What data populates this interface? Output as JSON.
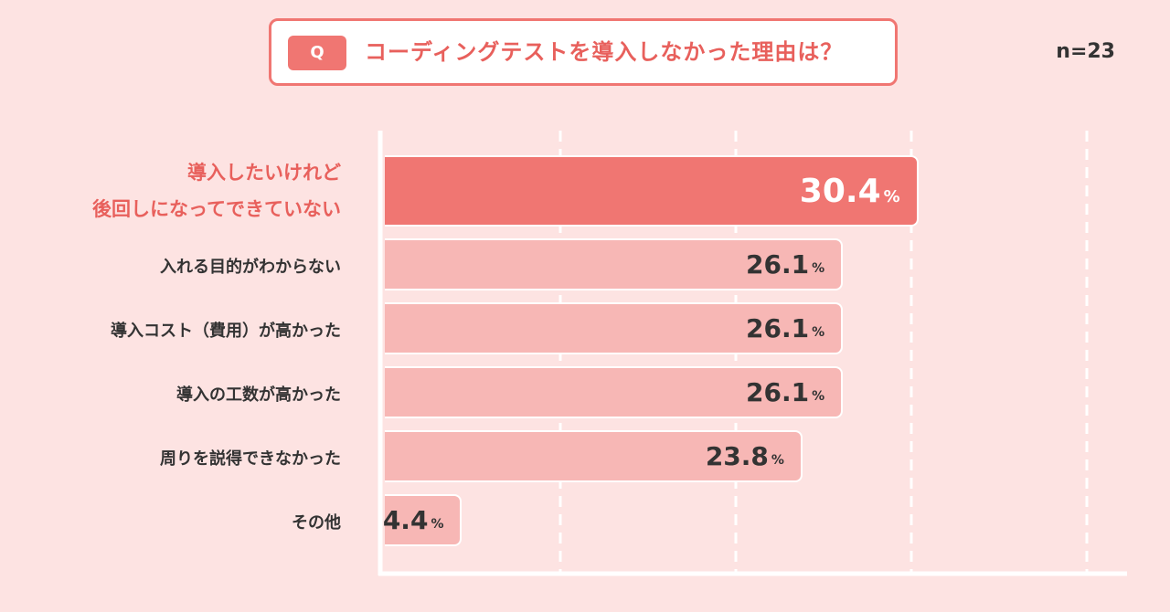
{
  "question": {
    "badge": "Q",
    "text": "コーディングテストを導入しなかった理由は？"
  },
  "sample_size": "n=23",
  "colors": {
    "background": "#fde3e2",
    "accent": "#f07672",
    "bar": "#f7b7b5",
    "highlight_text": "#e8605c"
  },
  "chart_data": {
    "type": "bar",
    "orientation": "horizontal",
    "categories": [
      "導入したいけれど\n後回しになってできていない",
      "入れる目的がわからない",
      "導入コスト（費用）が高かった",
      "導入の工数が高かった",
      "周りを説得できなかった",
      "その他"
    ],
    "values": [
      30.4,
      26.1,
      26.1,
      26.1,
      23.8,
      4.4
    ],
    "value_labels": [
      "30.4",
      "26.1",
      "26.1",
      "26.1",
      "23.8",
      "4.4"
    ],
    "unit": "%",
    "highlight_index": 0,
    "xlim": [
      0,
      40
    ],
    "gridlines": [
      10,
      20,
      30,
      40
    ],
    "grid": true
  }
}
